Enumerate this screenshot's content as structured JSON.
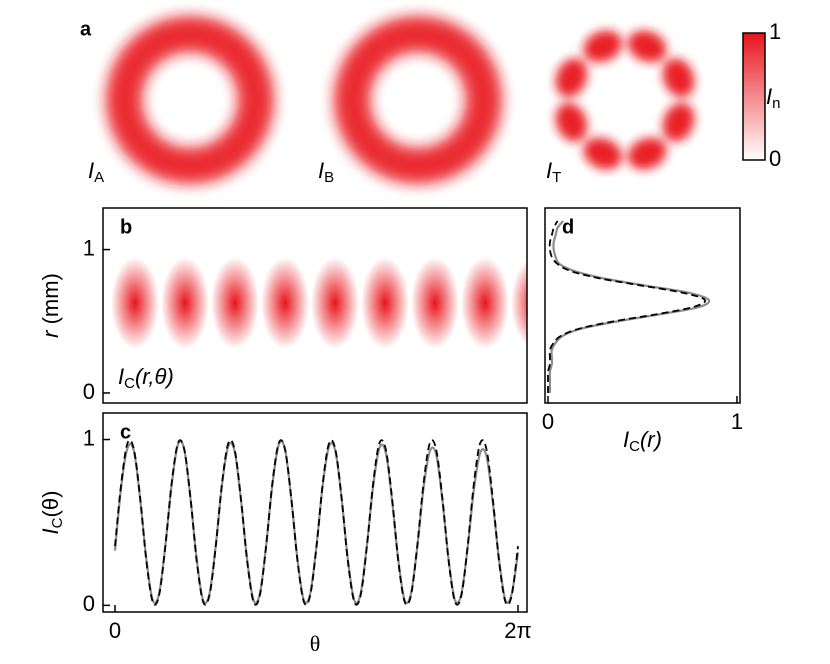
{
  "panel_a": {
    "label": "a",
    "images": [
      {
        "main": "I",
        "sub": "A"
      },
      {
        "main": "I",
        "sub": "B"
      },
      {
        "main": "I",
        "sub": "T"
      }
    ],
    "colorbar": {
      "lim": [
        0,
        1
      ],
      "ticks": [
        0,
        1
      ],
      "label": {
        "main": "I",
        "sub": "n"
      },
      "colors": [
        "#ffffff",
        "#e8141c"
      ]
    }
  },
  "chart_data": [
    {
      "type": "heatmap",
      "label": "b",
      "ylabel": {
        "main": "r",
        "rest": " (mm)"
      },
      "annotation": {
        "main": "I",
        "sub": "C",
        "rest": "(r,θ)"
      },
      "ylim": [
        -0.07,
        1.29
      ],
      "yticks": [
        0,
        1
      ],
      "color": "#e8141c"
    },
    {
      "type": "line",
      "label": "c",
      "ylabel": {
        "main": "I",
        "sub": "C",
        "rest": "(θ)"
      },
      "xlabel": "θ",
      "x": [
        0,
        0.098,
        0.196,
        0.295,
        0.393,
        0.491,
        0.589,
        0.687,
        0.785,
        0.884,
        0.982,
        1.08,
        1.178,
        1.276,
        1.374,
        1.473,
        1.571,
        1.669,
        1.767,
        1.865,
        1.963,
        2.062,
        2.16,
        2.258,
        2.356,
        2.454,
        2.553,
        2.651,
        2.749,
        2.847,
        2.945,
        3.043,
        3.142,
        3.24,
        3.338,
        3.436,
        3.534,
        3.632,
        3.731,
        3.829,
        3.927,
        4.025,
        4.123,
        4.222,
        4.32,
        4.418,
        4.516,
        4.614,
        4.712,
        4.811,
        4.909,
        5.007,
        5.105,
        5.203,
        5.301,
        5.4,
        5.498,
        5.596,
        5.694,
        5.792,
        5.89,
        5.989,
        6.087,
        6.185,
        6.283
      ],
      "xlim": [
        -0.187,
        6.423
      ],
      "xticks": [
        0,
        {
          "value": 6.283,
          "label": "2π"
        }
      ],
      "ylim": [
        -0.04,
        1.16
      ],
      "yticks": [
        0,
        1
      ],
      "series": [
        {
          "color": "#8c8c8c",
          "values": [
            0.33,
            0.72,
            0.95,
            0.93,
            0.64,
            0.27,
            0.03,
            0.07,
            0.36,
            0.73,
            0.97,
            0.94,
            0.64,
            0.27,
            0.03,
            0.07,
            0.36,
            0.73,
            0.96,
            0.93,
            0.64,
            0.27,
            0.03,
            0.07,
            0.36,
            0.73,
            0.97,
            0.94,
            0.64,
            0.27,
            0.03,
            0.07,
            0.36,
            0.73,
            0.96,
            0.93,
            0.64,
            0.27,
            0.03,
            0.07,
            0.36,
            0.72,
            0.95,
            0.92,
            0.63,
            0.27,
            0.03,
            0.07,
            0.35,
            0.71,
            0.93,
            0.91,
            0.63,
            0.27,
            0.03,
            0.07,
            0.35,
            0.7,
            0.92,
            0.9,
            0.62,
            0.27,
            0.03,
            0.07,
            0.32
          ]
        },
        {
          "color": "#000000",
          "dash": true,
          "values": [
            0.357,
            0.738,
            0.979,
            0.94,
            0.643,
            0.262,
            0.021,
            0.06,
            0.357,
            0.738,
            0.979,
            0.94,
            0.643,
            0.262,
            0.021,
            0.06,
            0.357,
            0.738,
            0.979,
            0.94,
            0.643,
            0.262,
            0.021,
            0.06,
            0.357,
            0.738,
            0.979,
            0.94,
            0.643,
            0.262,
            0.021,
            0.06,
            0.357,
            0.738,
            0.979,
            0.94,
            0.643,
            0.262,
            0.021,
            0.06,
            0.357,
            0.738,
            0.979,
            0.94,
            0.643,
            0.262,
            0.021,
            0.06,
            0.357,
            0.738,
            0.979,
            0.94,
            0.643,
            0.262,
            0.021,
            0.06,
            0.357,
            0.738,
            0.979,
            0.94,
            0.643,
            0.262,
            0.021,
            0.06,
            0.357
          ]
        }
      ]
    },
    {
      "type": "line",
      "orientation": "horizontal",
      "label": "d",
      "xlabel": {
        "main": "I",
        "sub": "C",
        "rest": "(r)"
      },
      "y": [
        0,
        0.05,
        0.1,
        0.15,
        0.2,
        0.25,
        0.3,
        0.35,
        0.4,
        0.45,
        0.5,
        0.55,
        0.6,
        0.65,
        0.7,
        0.75,
        0.8,
        0.85,
        0.9,
        0.95,
        1.0,
        1.05,
        1.1,
        1.15,
        1.2
      ],
      "ylim": [
        -0.07,
        1.29
      ],
      "xlim": [
        -0.016,
        1.016
      ],
      "xticks": [
        0,
        1
      ],
      "series": [
        {
          "color": "#8c8c8c",
          "values": [
            0.01,
            0.01,
            0.01,
            0.01,
            0.02,
            0.02,
            0.02,
            0.04,
            0.08,
            0.18,
            0.37,
            0.6,
            0.8,
            0.85,
            0.74,
            0.51,
            0.29,
            0.14,
            0.06,
            0.04,
            0.03,
            0.03,
            0.04,
            0.05,
            0.08
          ]
        },
        {
          "color": "#000000",
          "dash": true,
          "values": [
            0,
            0,
            0,
            0,
            0.01,
            0.01,
            0.01,
            0.03,
            0.07,
            0.17,
            0.35,
            0.58,
            0.77,
            0.83,
            0.71,
            0.49,
            0.27,
            0.12,
            0.05,
            0.02,
            0.01,
            0.01,
            0.02,
            0.03,
            0.05
          ]
        }
      ]
    }
  ]
}
